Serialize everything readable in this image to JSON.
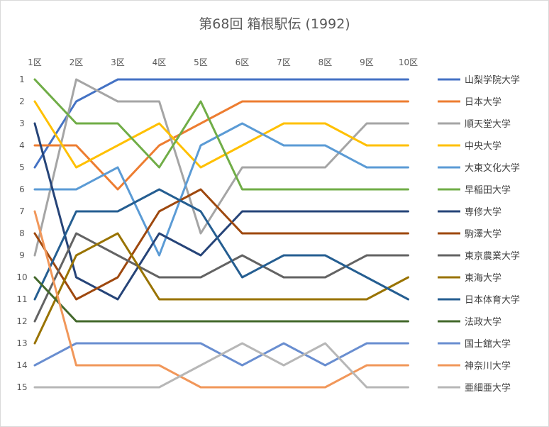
{
  "chart_data": {
    "type": "line",
    "title": "第68回 箱根駅伝 (1992)",
    "xlabel": "",
    "ylabel": "",
    "x_axis_position": "top",
    "y_axis_reversed": true,
    "ylim": [
      1,
      15
    ],
    "grid": false,
    "legend_position": "right",
    "categories": [
      "1区",
      "2区",
      "3区",
      "4区",
      "5区",
      "6区",
      "7区",
      "8区",
      "9区",
      "10区"
    ],
    "y_ticks": [
      "1",
      "2",
      "3",
      "4",
      "5",
      "6",
      "7",
      "8",
      "9",
      "10",
      "11",
      "12",
      "13",
      "14",
      "15"
    ],
    "series": [
      {
        "name": "山梨学院大学",
        "color": "#4472C4",
        "values": [
          5,
          2,
          1,
          1,
          1,
          1,
          1,
          1,
          1,
          1
        ]
      },
      {
        "name": "日本大学",
        "color": "#ED7D31",
        "values": [
          4,
          4,
          6,
          4,
          3,
          2,
          2,
          2,
          2,
          2
        ]
      },
      {
        "name": "順天堂大学",
        "color": "#A5A5A5",
        "values": [
          9,
          1,
          2,
          2,
          8,
          5,
          5,
          5,
          3,
          3
        ]
      },
      {
        "name": "中央大学",
        "color": "#FFC000",
        "values": [
          2,
          5,
          4,
          3,
          5,
          4,
          3,
          3,
          4,
          4
        ]
      },
      {
        "name": "大東文化大学",
        "color": "#5B9BD5",
        "values": [
          6,
          6,
          5,
          9,
          4,
          3,
          4,
          4,
          5,
          5
        ]
      },
      {
        "name": "早稲田大学",
        "color": "#70AD47",
        "values": [
          1,
          3,
          3,
          5,
          2,
          6,
          6,
          6,
          6,
          6
        ]
      },
      {
        "name": "専修大学",
        "color": "#264478",
        "values": [
          3,
          10,
          11,
          8,
          9,
          7,
          7,
          7,
          7,
          7
        ]
      },
      {
        "name": "駒澤大学",
        "color": "#9E480E",
        "values": [
          8,
          11,
          10,
          7,
          6,
          8,
          8,
          8,
          8,
          8
        ]
      },
      {
        "name": "東京農業大学",
        "color": "#636363",
        "values": [
          12,
          8,
          9,
          10,
          10,
          9,
          10,
          10,
          9,
          9
        ]
      },
      {
        "name": "東海大学",
        "color": "#997300",
        "values": [
          13,
          9,
          8,
          11,
          11,
          11,
          11,
          11,
          11,
          10
        ]
      },
      {
        "name": "日本体育大学",
        "color": "#255E91",
        "values": [
          11,
          7,
          7,
          6,
          7,
          10,
          9,
          9,
          10,
          11
        ]
      },
      {
        "name": "法政大学",
        "color": "#43682B",
        "values": [
          10,
          12,
          12,
          12,
          12,
          12,
          12,
          12,
          12,
          12
        ]
      },
      {
        "name": "国士舘大学",
        "color": "#698ED0",
        "values": [
          14,
          13,
          13,
          13,
          13,
          14,
          13,
          14,
          13,
          13
        ]
      },
      {
        "name": "神奈川大学",
        "color": "#F1975A",
        "values": [
          7,
          14,
          14,
          14,
          15,
          15,
          15,
          15,
          14,
          14
        ]
      },
      {
        "name": "亜細亜大学",
        "color": "#B7B7B7",
        "values": [
          15,
          15,
          15,
          15,
          14,
          13,
          14,
          13,
          15,
          15
        ]
      }
    ]
  }
}
